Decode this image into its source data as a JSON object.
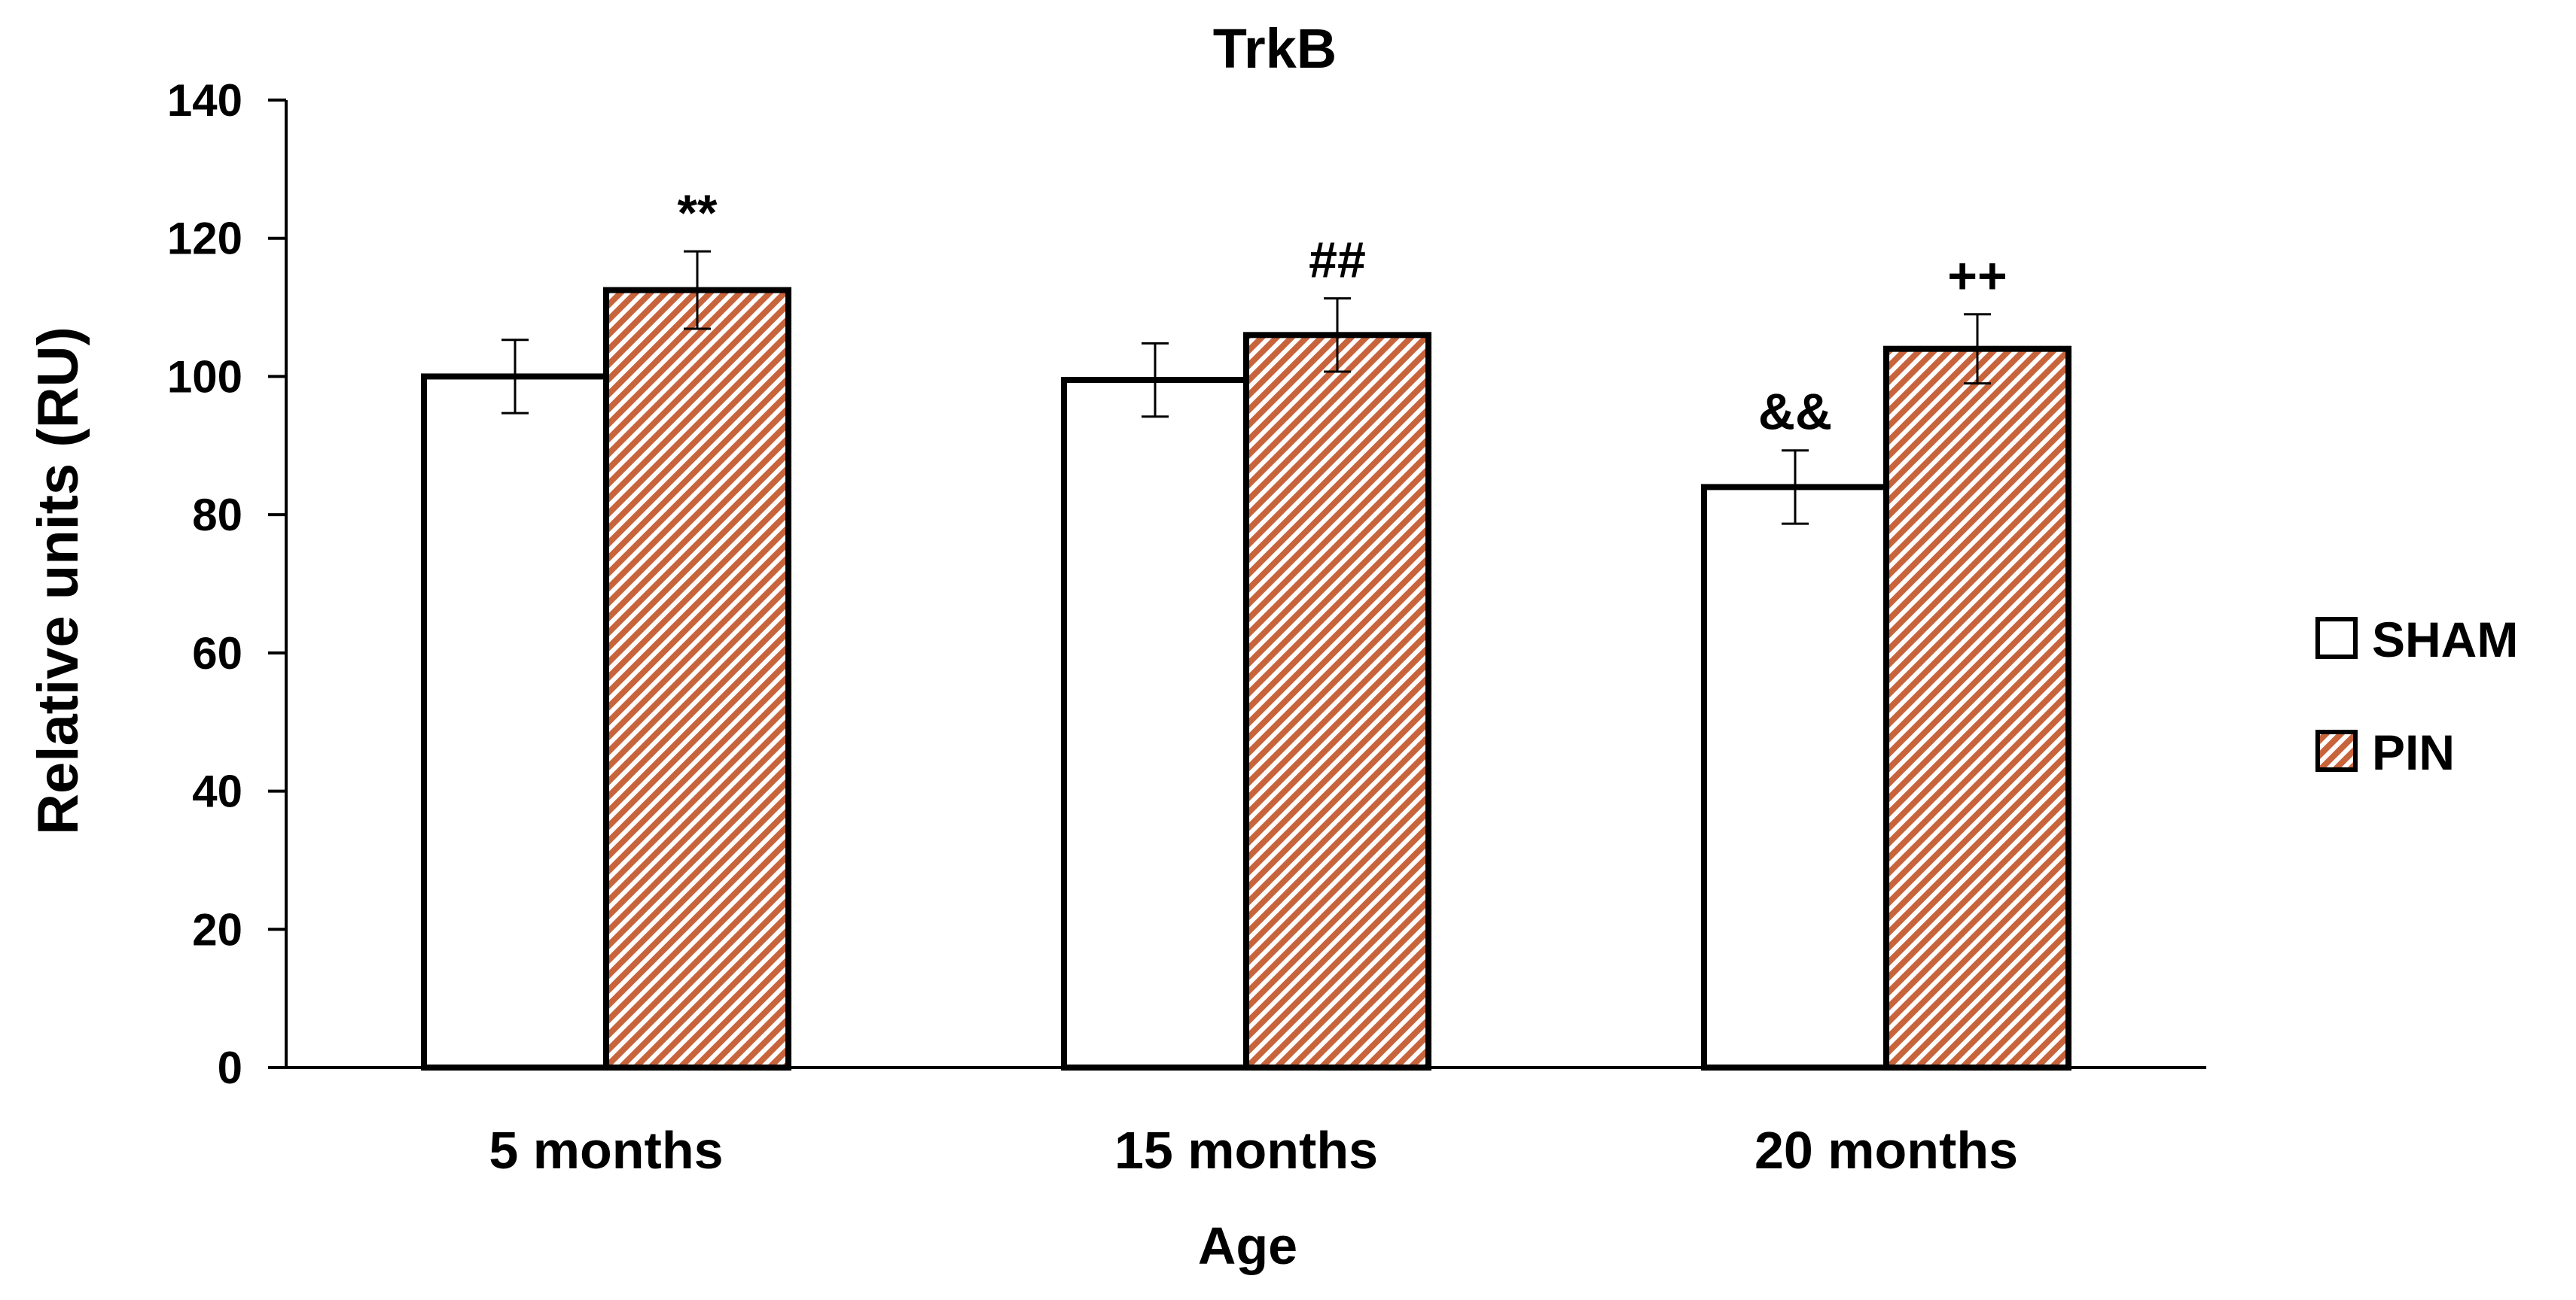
{
  "chart_data": {
    "type": "bar",
    "title": "TrkB",
    "xlabel": "Age",
    "ylabel": "Relative units (RU)",
    "categories": [
      "5 months",
      "15 months",
      "20 months"
    ],
    "ylim": [
      0,
      140
    ],
    "yticks": [
      "0",
      "20",
      "40",
      "60",
      "80",
      "100",
      "120",
      "140"
    ],
    "grid": false,
    "legend_position": "right",
    "series": [
      {
        "name": "SHAM",
        "pattern": "none",
        "fill_color": "#ffffff",
        "values": [
          100,
          99.5,
          84
        ],
        "errors": [
          5.3,
          5.3,
          5.3
        ],
        "annotations": [
          "",
          "",
          "&&"
        ]
      },
      {
        "name": "PIN",
        "pattern": "diagonal-hatch",
        "fill_color": "#c8643c",
        "values": [
          112.5,
          106,
          104
        ],
        "errors": [
          5.6,
          5.3,
          5.0
        ],
        "annotations": [
          "**",
          "##",
          "++"
        ]
      }
    ]
  }
}
